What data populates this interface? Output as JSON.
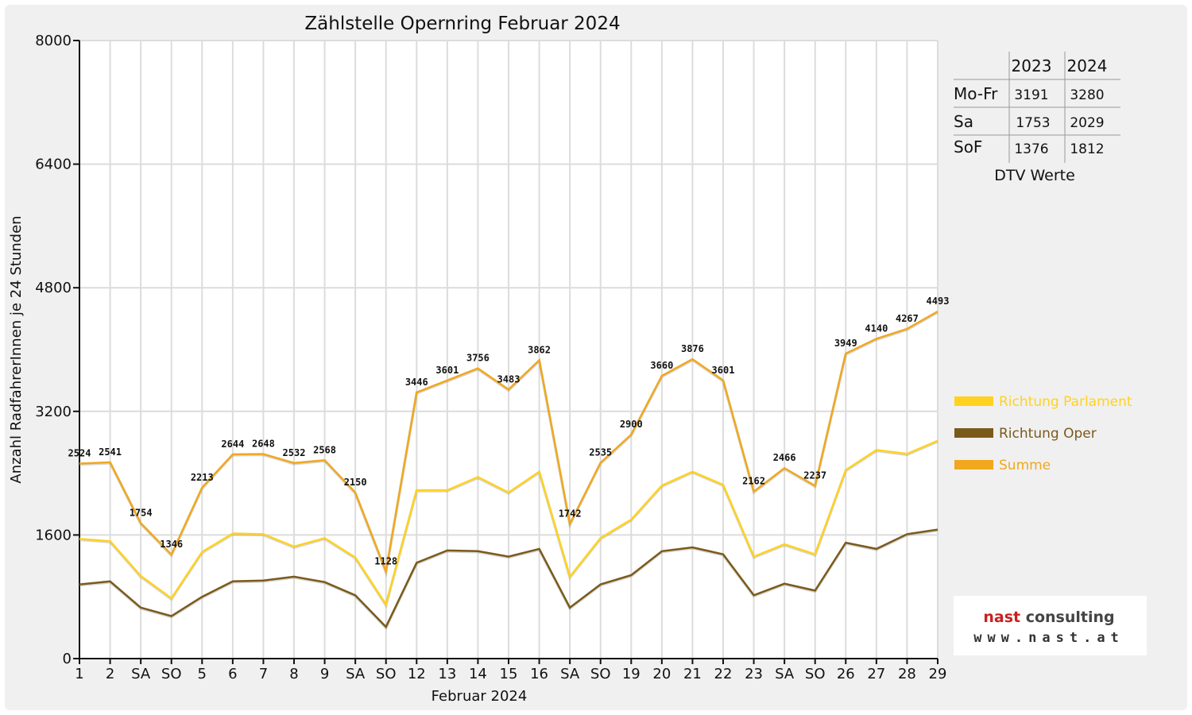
{
  "chart_data": {
    "type": "line",
    "title": "Zählstelle Opernring Februar 2024",
    "xlabel": "Februar 2024",
    "ylabel": "Anzahl RadfahrerInnen je 24 Stunden",
    "ylim": [
      0,
      8000
    ],
    "yticks": [
      "0",
      "1600",
      "3200",
      "4800",
      "6400",
      "8000"
    ],
    "grid": true,
    "legend_position": "right",
    "categories": [
      "1",
      "2",
      "SA",
      "SO",
      "5",
      "6",
      "7",
      "8",
      "9",
      "SA",
      "SO",
      "12",
      "13",
      "14",
      "15",
      "16",
      "SA",
      "SO",
      "19",
      "20",
      "21",
      "22",
      "23",
      "SA",
      "SO",
      "26",
      "27",
      "28",
      "29"
    ],
    "highlight_categories": [
      "SO"
    ],
    "highlight_color": "#e00000",
    "series": [
      {
        "name": "Richtung Parlament",
        "color": "#ffd21f",
        "values": [
          1550,
          1520,
          1070,
          780,
          1380,
          1620,
          1610,
          1450,
          1560,
          1310,
          700,
          2180,
          2180,
          2350,
          2150,
          2420,
          1060,
          1560,
          1800,
          2240,
          2420,
          2250,
          1320,
          1480,
          1350,
          2440,
          2700,
          2650,
          2820
        ]
      },
      {
        "name": "Richtung Oper",
        "color": "#7a5a1a",
        "values": [
          960,
          1000,
          660,
          550,
          800,
          1000,
          1010,
          1060,
          990,
          820,
          410,
          1240,
          1400,
          1390,
          1320,
          1420,
          660,
          960,
          1080,
          1390,
          1440,
          1350,
          820,
          970,
          880,
          1500,
          1420,
          1610,
          1670
        ]
      },
      {
        "name": "Summe",
        "color": "#f0a81e",
        "values": [
          2524,
          2541,
          1754,
          1346,
          2213,
          2644,
          2648,
          2532,
          2568,
          2150,
          1128,
          3446,
          3601,
          3756,
          3483,
          3862,
          1742,
          2535,
          2900,
          3660,
          3876,
          3601,
          2162,
          2466,
          2237,
          3949,
          4140,
          4267,
          4493
        ],
        "labels": [
          "2524",
          "2541",
          "1754",
          "1346",
          "2213",
          "2644",
          "2648",
          "2532",
          "2568",
          "2150",
          "1128",
          "3446",
          "3601",
          "3756",
          "3483",
          "3862",
          "1742",
          "2535",
          "2900",
          "3660",
          "3876",
          "3601",
          "2162",
          "2466",
          "2237",
          "3949",
          "4140",
          "4267",
          "4493"
        ]
      }
    ]
  },
  "dtv_table": {
    "headers": [
      "",
      "2023",
      "2024"
    ],
    "rows": [
      {
        "label": "Mo-Fr",
        "v2023": "3191",
        "v2024": "3280"
      },
      {
        "label": "Sa",
        "v2023": "1753",
        "v2024": "2029"
      },
      {
        "label": "SoF",
        "v2023": "1376",
        "v2024": "1812"
      }
    ],
    "caption": "DTV Werte"
  },
  "logo": {
    "line1": "nast consulting",
    "line2": "www.nast.at",
    "color": "#cc1f1f"
  }
}
